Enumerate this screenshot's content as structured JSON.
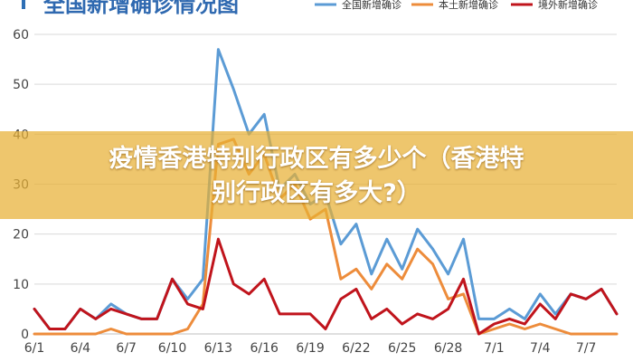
{
  "chart_data": {
    "type": "line",
    "title": "全国新增确诊情况图",
    "xlabel": "",
    "ylabel": "",
    "ylim": [
      0,
      60
    ],
    "yticks": [
      0,
      10,
      20,
      30,
      40,
      50,
      60
    ],
    "grid": true,
    "legend_position": "top-right",
    "x": [
      "6/1",
      "6/2",
      "6/3",
      "6/4",
      "6/5",
      "6/6",
      "6/7",
      "6/8",
      "6/9",
      "6/10",
      "6/11",
      "6/12",
      "6/13",
      "6/14",
      "6/15",
      "6/16",
      "6/17",
      "6/18",
      "6/19",
      "6/20",
      "6/21",
      "6/22",
      "6/23",
      "6/24",
      "6/25",
      "6/26",
      "6/27",
      "6/28",
      "6/29",
      "6/30",
      "7/1",
      "7/2",
      "7/3",
      "7/4",
      "7/5",
      "7/6",
      "7/7",
      "7/8",
      "7/9"
    ],
    "x_tick_labels": [
      "6/1",
      "6/4",
      "6/7",
      "6/10",
      "6/13",
      "6/16",
      "6/19",
      "6/22",
      "6/25",
      "6/28",
      "7/1",
      "7/4",
      "7/7"
    ],
    "series": [
      {
        "name": "全国新增确诊",
        "color": "#5b9bd5",
        "values": [
          5,
          1,
          1,
          5,
          3,
          6,
          4,
          3,
          3,
          11,
          7,
          11,
          57,
          49,
          40,
          44,
          29,
          32,
          26,
          28,
          18,
          22,
          12,
          19,
          13,
          21,
          17,
          12,
          19,
          3,
          3,
          5,
          3,
          8,
          4,
          8,
          7,
          9,
          4
        ]
      },
      {
        "name": "本土新增确诊",
        "color": "#ed8c3b",
        "values": [
          0,
          0,
          0,
          0,
          0,
          1,
          0,
          0,
          0,
          0,
          1,
          6,
          38,
          39,
          32,
          36,
          27,
          30,
          23,
          25,
          11,
          13,
          9,
          14,
          11,
          17,
          14,
          7,
          8,
          0,
          1,
          2,
          1,
          2,
          1,
          0,
          0,
          0,
          0
        ]
      },
      {
        "name": "境外新增确诊",
        "color": "#c0141c",
        "values": [
          5,
          1,
          1,
          5,
          3,
          5,
          4,
          3,
          3,
          11,
          6,
          5,
          19,
          10,
          8,
          11,
          4,
          4,
          4,
          1,
          7,
          9,
          3,
          5,
          2,
          4,
          3,
          5,
          11,
          0,
          2,
          3,
          2,
          6,
          3,
          8,
          7,
          9,
          4
        ]
      }
    ]
  },
  "overlay": {
    "line1": "疫情香港特别行政区有多少个（香港特",
    "line2": "别行政区有多大?）"
  }
}
